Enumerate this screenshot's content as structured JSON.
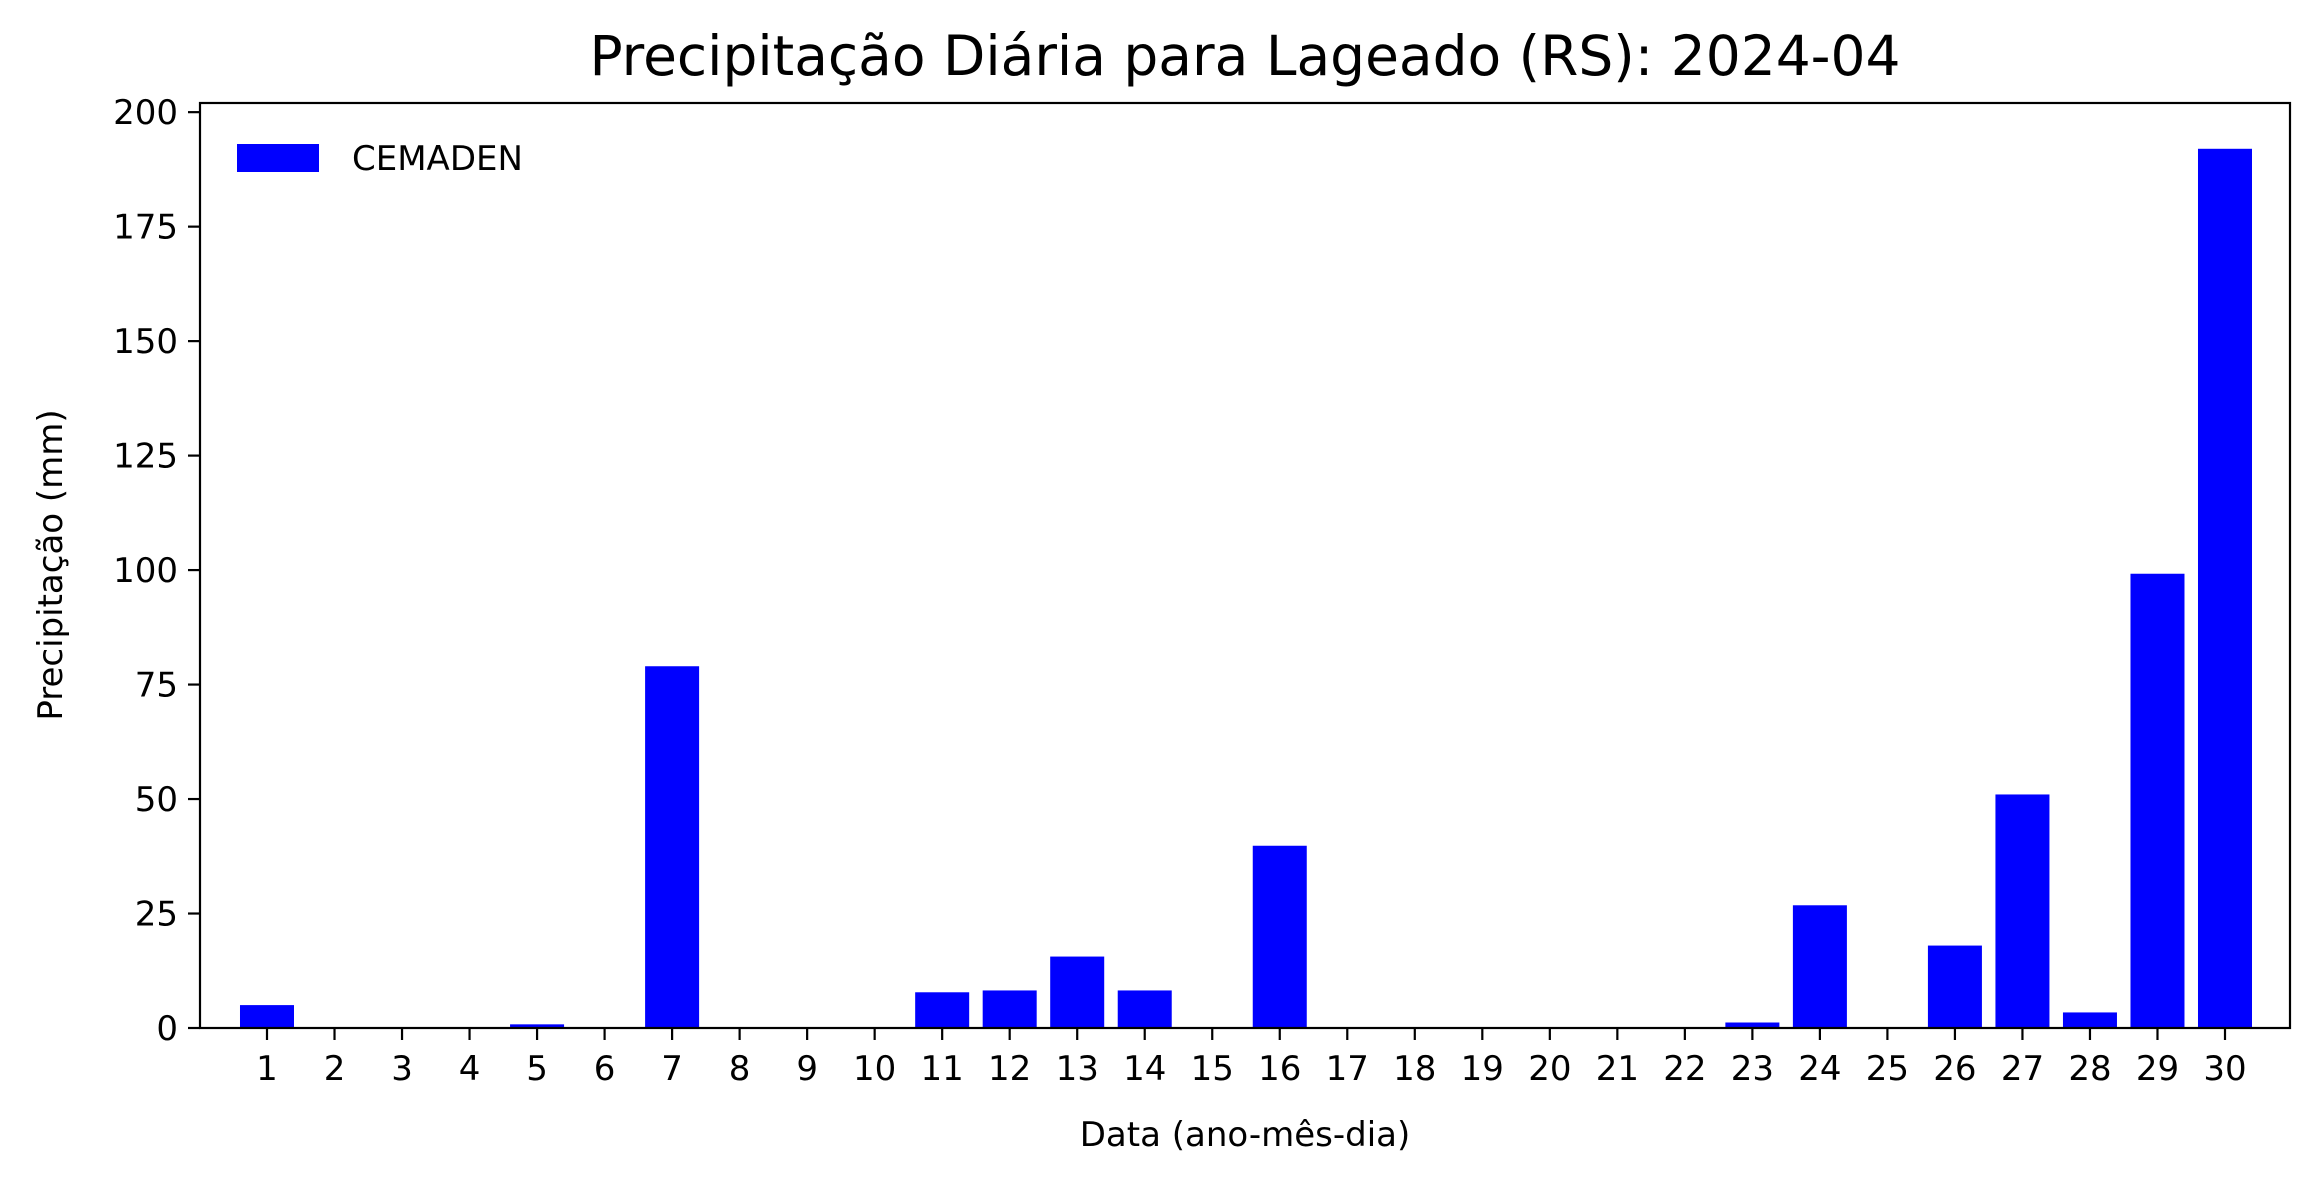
{
  "chart_data": {
    "type": "bar",
    "title": "Precipitação Diária para Lageado (RS): 2024-04",
    "xlabel": "Data (ano-mês-dia)",
    "ylabel": "Precipitação (mm)",
    "ylim": [
      0,
      202
    ],
    "yticks": [
      0,
      25,
      50,
      75,
      100,
      125,
      150,
      175,
      200
    ],
    "grid": false,
    "legend_position": "upper-left",
    "categories": [
      "1",
      "2",
      "3",
      "4",
      "5",
      "6",
      "7",
      "8",
      "9",
      "10",
      "11",
      "12",
      "13",
      "14",
      "15",
      "16",
      "17",
      "18",
      "19",
      "20",
      "21",
      "22",
      "23",
      "24",
      "25",
      "26",
      "27",
      "28",
      "29",
      "30"
    ],
    "series": [
      {
        "name": "CEMADEN",
        "color": "#0000ff",
        "values": [
          5,
          0,
          0,
          0,
          0.8,
          0,
          79,
          0,
          0,
          0,
          7.8,
          8.2,
          15.6,
          8.2,
          0,
          39.8,
          0,
          0,
          0,
          0,
          0,
          0,
          1.2,
          26.8,
          0,
          18,
          51,
          3.4,
          99.2,
          192
        ]
      }
    ]
  }
}
